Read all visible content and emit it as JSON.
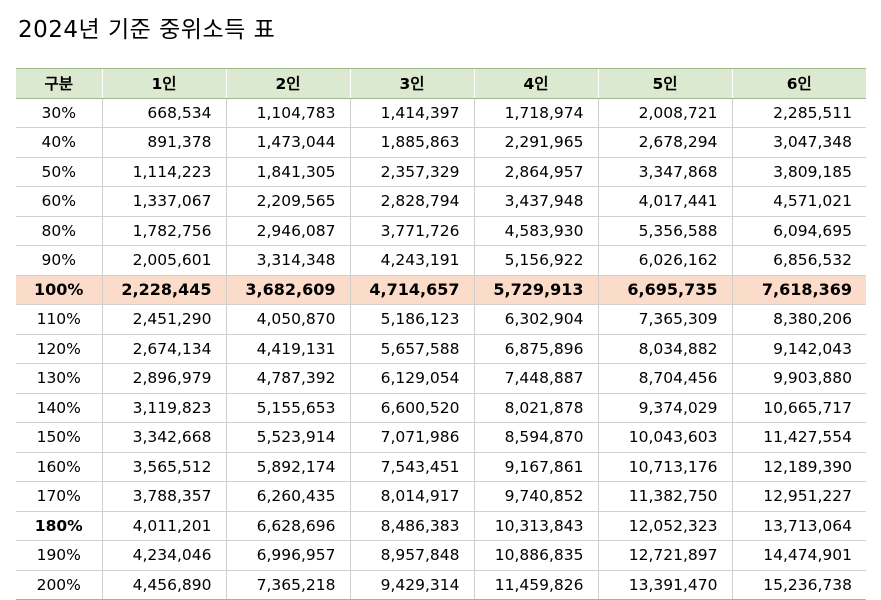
{
  "title": "2024년 기준 중위소득 표",
  "columns": [
    "구분",
    "1인",
    "2인",
    "3인",
    "4인",
    "5인",
    "6인"
  ],
  "highlight_color": "#fbdccb",
  "header_color": "#dbe9d0",
  "rows": [
    {
      "label": "30%",
      "values": [
        "668,534",
        "1,104,783",
        "1,414,397",
        "1,718,974",
        "2,008,721",
        "2,285,511"
      ]
    },
    {
      "label": "40%",
      "values": [
        "891,378",
        "1,473,044",
        "1,885,863",
        "2,291,965",
        "2,678,294",
        "3,047,348"
      ]
    },
    {
      "label": "50%",
      "values": [
        "1,114,223",
        "1,841,305",
        "2,357,329",
        "2,864,957",
        "3,347,868",
        "3,809,185"
      ]
    },
    {
      "label": "60%",
      "values": [
        "1,337,067",
        "2,209,565",
        "2,828,794",
        "3,437,948",
        "4,017,441",
        "4,571,021"
      ]
    },
    {
      "label": "80%",
      "values": [
        "1,782,756",
        "2,946,087",
        "3,771,726",
        "4,583,930",
        "5,356,588",
        "6,094,695"
      ]
    },
    {
      "label": "90%",
      "values": [
        "2,005,601",
        "3,314,348",
        "4,243,191",
        "5,156,922",
        "6,026,162",
        "6,856,532"
      ]
    },
    {
      "label": "100%",
      "values": [
        "2,228,445",
        "3,682,609",
        "4,714,657",
        "5,729,913",
        "6,695,735",
        "7,618,369"
      ]
    },
    {
      "label": "110%",
      "values": [
        "2,451,290",
        "4,050,870",
        "5,186,123",
        "6,302,904",
        "7,365,309",
        "8,380,206"
      ]
    },
    {
      "label": "120%",
      "values": [
        "2,674,134",
        "4,419,131",
        "5,657,588",
        "6,875,896",
        "8,034,882",
        "9,142,043"
      ]
    },
    {
      "label": "130%",
      "values": [
        "2,896,979",
        "4,787,392",
        "6,129,054",
        "7,448,887",
        "8,704,456",
        "9,903,880"
      ]
    },
    {
      "label": "140%",
      "values": [
        "3,119,823",
        "5,155,653",
        "6,600,520",
        "8,021,878",
        "9,374,029",
        "10,665,717"
      ]
    },
    {
      "label": "150%",
      "values": [
        "3,342,668",
        "5,523,914",
        "7,071,986",
        "8,594,870",
        "10,043,603",
        "11,427,554"
      ]
    },
    {
      "label": "160%",
      "values": [
        "3,565,512",
        "5,892,174",
        "7,543,451",
        "9,167,861",
        "10,713,176",
        "12,189,390"
      ]
    },
    {
      "label": "170%",
      "values": [
        "3,788,357",
        "6,260,435",
        "8,014,917",
        "9,740,852",
        "11,382,750",
        "12,951,227"
      ]
    },
    {
      "label": "180%",
      "values": [
        "4,011,201",
        "6,628,696",
        "8,486,383",
        "10,313,843",
        "12,052,323",
        "13,713,064"
      ]
    },
    {
      "label": "190%",
      "values": [
        "4,234,046",
        "6,996,957",
        "8,957,848",
        "10,886,835",
        "12,721,897",
        "14,474,901"
      ]
    },
    {
      "label": "200%",
      "values": [
        "4,456,890",
        "7,365,218",
        "9,429,314",
        "11,459,826",
        "13,391,470",
        "15,236,738"
      ]
    }
  ]
}
